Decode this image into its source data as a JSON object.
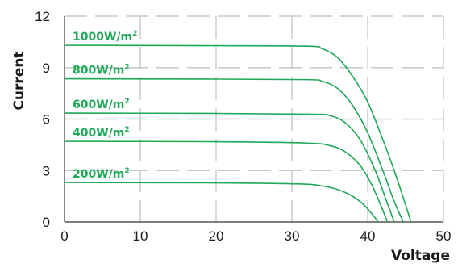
{
  "chart_data": {
    "type": "line",
    "xlabel": "Voltage",
    "ylabel": "Current",
    "xlim": [
      0,
      50
    ],
    "ylim": [
      0,
      12
    ],
    "x_ticks": [
      "0",
      "10",
      "20",
      "30",
      "40",
      "50"
    ],
    "y_ticks": [
      "0",
      "3",
      "6",
      "9",
      "12"
    ],
    "grid": true,
    "line_color": "#1fa857",
    "series": [
      {
        "name": "1000W/m2",
        "label_base": "1000W/m",
        "label_sup": "2",
        "points": [
          [
            0,
            10.3
          ],
          [
            20,
            10.28
          ],
          [
            32,
            10.25
          ],
          [
            34,
            10.1
          ],
          [
            36,
            9.6
          ],
          [
            38,
            8.5
          ],
          [
            40,
            7.0
          ],
          [
            42,
            4.8
          ],
          [
            43.5,
            3.0
          ],
          [
            45,
            1.0
          ],
          [
            45.7,
            0
          ]
        ]
      },
      {
        "name": "800W/m2",
        "label_base": "800W/m",
        "label_sup": "2",
        "points": [
          [
            0,
            8.35
          ],
          [
            20,
            8.33
          ],
          [
            32,
            8.3
          ],
          [
            34,
            8.2
          ],
          [
            36,
            7.8
          ],
          [
            38,
            6.8
          ],
          [
            40,
            5.2
          ],
          [
            42,
            3.0
          ],
          [
            43.5,
            1.2
          ],
          [
            44.7,
            0
          ]
        ]
      },
      {
        "name": "600W/m2",
        "label_base": "600W/m",
        "label_sup": "2",
        "points": [
          [
            0,
            6.35
          ],
          [
            20,
            6.33
          ],
          [
            33,
            6.28
          ],
          [
            35,
            6.2
          ],
          [
            37,
            5.8
          ],
          [
            39,
            4.8
          ],
          [
            41,
            3.0
          ],
          [
            42.5,
            1.2
          ],
          [
            43.5,
            0
          ]
        ]
      },
      {
        "name": "400W/m2",
        "label_base": "400W/m",
        "label_sup": "2",
        "points": [
          [
            0,
            4.7
          ],
          [
            20,
            4.68
          ],
          [
            32,
            4.6
          ],
          [
            35,
            4.45
          ],
          [
            37,
            4.1
          ],
          [
            39,
            3.3
          ],
          [
            40.5,
            2.2
          ],
          [
            41.8,
            0.9
          ],
          [
            42.6,
            0
          ]
        ]
      },
      {
        "name": "200W/m2",
        "label_base": "200W/m",
        "label_sup": "2",
        "points": [
          [
            0,
            2.3
          ],
          [
            20,
            2.28
          ],
          [
            31,
            2.22
          ],
          [
            34,
            2.1
          ],
          [
            36,
            1.9
          ],
          [
            38,
            1.5
          ],
          [
            39.5,
            1.0
          ],
          [
            40.7,
            0.4
          ],
          [
            41.4,
            0
          ]
        ]
      }
    ]
  }
}
